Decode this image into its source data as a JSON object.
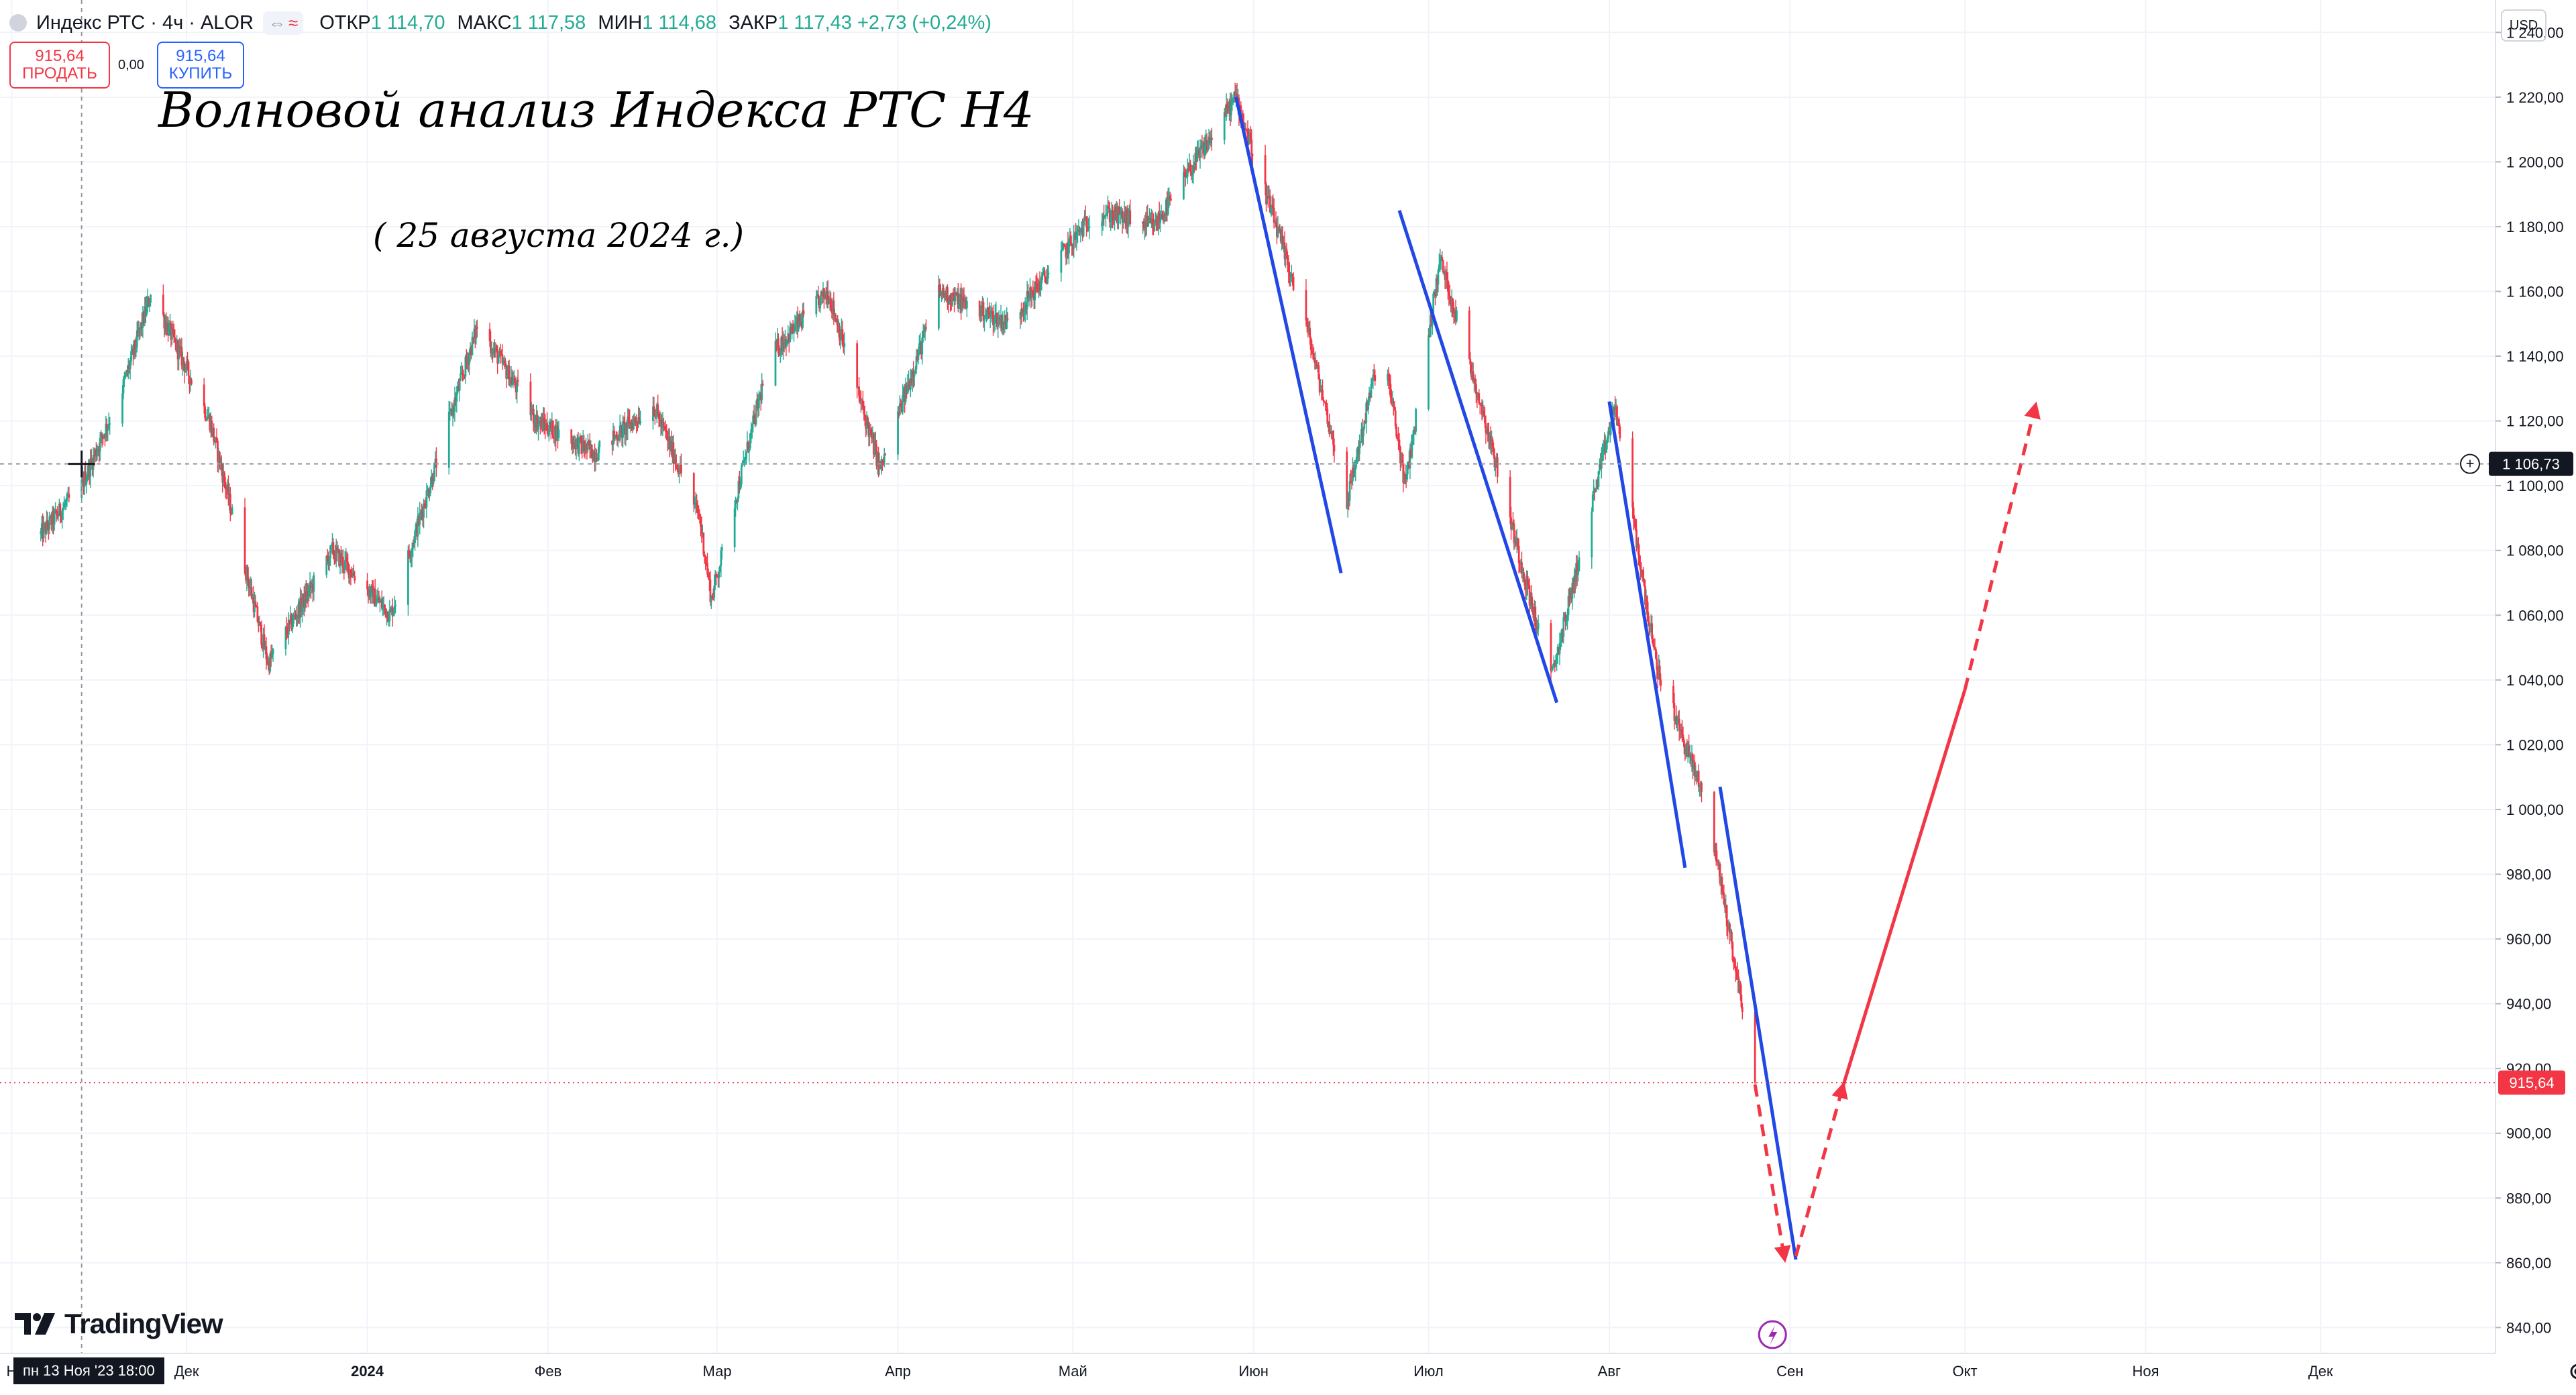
{
  "header": {
    "symbol_title": "Индекс РТС · 4ч · ALOR",
    "open_label": "ОТКР",
    "open_value": "1 114,70",
    "high_label": "МАКС",
    "high_value": "1 117,58",
    "low_label": "МИН",
    "low_value": "1 114,68",
    "close_label": "ЗАКР",
    "close_value": "1 117,43",
    "change": "+2,73 (+0,24%)",
    "toggle_left": "⇔",
    "toggle_right": "≈"
  },
  "trade": {
    "sell_price": "915,64",
    "sell_label": "ПРОДАТЬ",
    "spread": "0,00",
    "buy_price": "915,64",
    "buy_label": "КУПИТЬ"
  },
  "currency": "USD",
  "annotations": {
    "title": "Волновой анализ Индекса РТС Н4",
    "date": "( 25 августа 2024 г.)"
  },
  "branding": "TradingView",
  "time_cursor": "пн 13 Ноя '23   18:00",
  "colors": {
    "up": "#22ab94",
    "down": "#f23645",
    "wave_line": "#2147e6",
    "forecast": "#f23645",
    "grid": "#f0f3fa"
  },
  "chart_data": {
    "type": "candlestick",
    "title": "Индекс РТС · 4ч · ALOR",
    "x_axis_labels": [
      "Н",
      "Дек",
      "2024",
      "Фев",
      "Мар",
      "Апр",
      "Май",
      "Июн",
      "Июл",
      "Авг",
      "Сен",
      "Окт",
      "Ноя",
      "Дек"
    ],
    "y_ticks": [
      840,
      860,
      880,
      900,
      920,
      940,
      960,
      980,
      1000,
      1020,
      1040,
      1060,
      1080,
      1100,
      1120,
      1140,
      1160,
      1180,
      1200,
      1220,
      1240
    ],
    "y_tick_labels": [
      "840,00",
      "860,00",
      "880,00",
      "900,00",
      "920,00",
      "940,00",
      "960,00",
      "980,00",
      "1 000,00",
      "1 020,00",
      "1 040,00",
      "1 060,00",
      "1 080,00",
      "1 100,00",
      "1 120,00",
      "1 140,00",
      "1 160,00",
      "1 180,00",
      "1 200,00",
      "1 220,00",
      "1 240,00"
    ],
    "ylim": [
      832,
      1250
    ],
    "crosshair_price": "1 106,73",
    "last_price": "915,64",
    "grid": true,
    "price_path": [
      [
        "2023-11-06",
        1085
      ],
      [
        "2023-11-13",
        1100
      ],
      [
        "2023-11-20",
        1130
      ],
      [
        "2023-11-25",
        1160
      ],
      [
        "2023-12-05",
        1120
      ],
      [
        "2023-12-15",
        1045
      ],
      [
        "2023-12-26",
        1080
      ],
      [
        "2024-01-05",
        1060
      ],
      [
        "2024-01-10",
        1090
      ],
      [
        "2024-01-20",
        1150
      ],
      [
        "2024-01-30",
        1120
      ],
      [
        "2024-02-09",
        1110
      ],
      [
        "2024-02-19",
        1125
      ],
      [
        "2024-02-27",
        1090
      ],
      [
        "2024-02-29",
        1065
      ],
      [
        "2024-03-10",
        1140
      ],
      [
        "2024-03-20",
        1160
      ],
      [
        "2024-03-29",
        1105
      ],
      [
        "2024-04-08",
        1160
      ],
      [
        "2024-04-20",
        1150
      ],
      [
        "2024-05-05",
        1185
      ],
      [
        "2024-05-15",
        1180
      ],
      [
        "2024-05-29",
        1220
      ],
      [
        "2024-06-10",
        1150
      ],
      [
        "2024-06-17",
        1095
      ],
      [
        "2024-06-23",
        1145
      ],
      [
        "2024-06-27",
        1100
      ],
      [
        "2024-07-03",
        1170
      ],
      [
        "2024-07-10",
        1125
      ],
      [
        "2024-07-22",
        1040
      ],
      [
        "2024-08-02",
        1125
      ],
      [
        "2024-08-09",
        1045
      ],
      [
        "2024-08-18",
        1000
      ],
      [
        "2024-08-26",
        915.64
      ]
    ],
    "wave_lines": [
      {
        "from": [
          "2024-05-29",
          1220
        ],
        "to": [
          "2024-06-16",
          1073
        ]
      },
      {
        "from": [
          "2024-06-26",
          1185
        ],
        "to": [
          "2024-07-23",
          1033
        ]
      },
      {
        "from": [
          "2024-08-01",
          1126
        ],
        "to": [
          "2024-08-14",
          982
        ]
      },
      {
        "from": [
          "2024-08-20",
          1007
        ],
        "to": [
          "2024-09-02",
          861
        ]
      }
    ],
    "forecast": [
      {
        "from": [
          "2024-08-26",
          915
        ],
        "to": [
          "2024-08-31",
          862
        ],
        "style": "dashed"
      },
      {
        "from": [
          "2024-09-02",
          862
        ],
        "to": [
          "2024-09-10",
          914
        ],
        "style": "dashed"
      },
      {
        "from": [
          "2024-09-10",
          914
        ],
        "to": [
          "2024-10-01",
          1037
        ],
        "style": "solid"
      },
      {
        "from": [
          "2024-10-01",
          1037
        ],
        "to": [
          "2024-10-13",
          1124
        ],
        "style": "dashed"
      }
    ]
  }
}
